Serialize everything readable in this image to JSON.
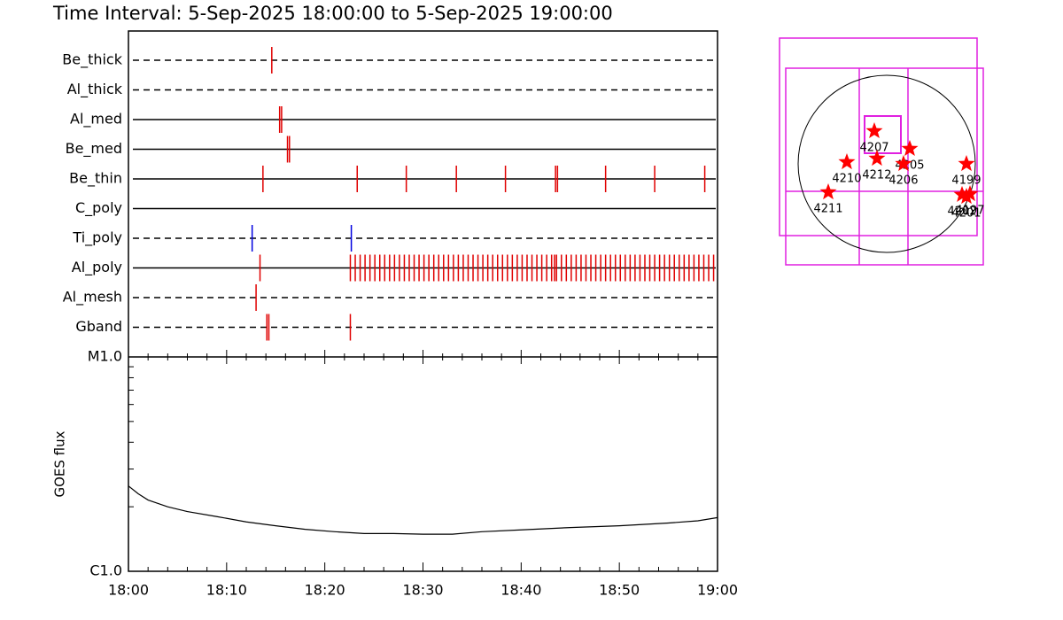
{
  "chart_data": [
    {
      "type": "timeline",
      "title": "Time Interval:  5-Sep-2025 18:00:00 to  5-Sep-2025 19:00:00",
      "xlim": [
        0,
        60
      ],
      "series": [
        {
          "name": "Be_thick",
          "line": "dashed",
          "color": "#e00000",
          "values": [
            14.6
          ]
        },
        {
          "name": "Al_thick",
          "line": "dashed",
          "color": "#e00000",
          "values": []
        },
        {
          "name": "Al_med",
          "line": "solid",
          "color": "#e00000",
          "values": [
            15.4,
            15.6
          ]
        },
        {
          "name": "Be_med",
          "line": "solid",
          "color": "#e00000",
          "values": [
            16.2,
            16.4
          ]
        },
        {
          "name": "Be_thin",
          "line": "solid",
          "color": "#e00000",
          "values": [
            13.7,
            23.3,
            28.3,
            33.4,
            38.4,
            43.5,
            43.7,
            48.6,
            53.6,
            58.7
          ]
        },
        {
          "name": "C_poly",
          "line": "solid",
          "color": "#e00000",
          "values": []
        },
        {
          "name": "Ti_poly",
          "line": "dashed",
          "color": "#0000e0",
          "values": [
            12.6,
            22.7
          ]
        },
        {
          "name": "Al_poly",
          "line": "solid",
          "color": "#e00000",
          "values": [
            13.4,
            22.6,
            23.1,
            23.6,
            24.1,
            24.6,
            25.1,
            25.6,
            26.1,
            26.6,
            27.1,
            27.6,
            28.1,
            28.6,
            29.1,
            29.6,
            30.1,
            30.6,
            31.1,
            31.6,
            32.1,
            32.6,
            33.1,
            33.6,
            34.1,
            34.6,
            35.1,
            35.6,
            36.1,
            36.6,
            37.1,
            37.6,
            38.1,
            38.6,
            39.1,
            39.6,
            40.1,
            40.6,
            41.1,
            41.6,
            42.1,
            42.6,
            43.1,
            43.4,
            43.6,
            44.1,
            44.6,
            45.1,
            45.6,
            46.1,
            46.6,
            47.1,
            47.6,
            48.1,
            48.6,
            49.1,
            49.6,
            50.1,
            50.6,
            51.1,
            51.6,
            52.1,
            52.6,
            53.1,
            53.6,
            54.1,
            54.6,
            55.1,
            55.6,
            56.1,
            56.6,
            57.1,
            57.6,
            58.1,
            58.6,
            59.1,
            59.6
          ]
        },
        {
          "name": "Al_mesh",
          "line": "dashed",
          "color": "#e00000",
          "values": [
            13.0
          ]
        },
        {
          "name": "Gband",
          "line": "dashed",
          "color": "#e00000",
          "values": [
            14.1,
            14.3,
            22.6
          ]
        }
      ]
    },
    {
      "type": "line",
      "ylabel": "GOES flux",
      "log_scale": true,
      "color": "#000000",
      "x": [
        0,
        1,
        2,
        4,
        6,
        9,
        12,
        15,
        18,
        21,
        24,
        27,
        30,
        33,
        36,
        40,
        45,
        50,
        55,
        58,
        60
      ],
      "values": [
        2.5e-06,
        2.3e-06,
        2.15e-06,
        2e-06,
        1.9e-06,
        1.8e-06,
        1.7e-06,
        1.63e-06,
        1.57e-06,
        1.53e-06,
        1.5e-06,
        1.5e-06,
        1.49e-06,
        1.49e-06,
        1.53e-06,
        1.56e-06,
        1.6e-06,
        1.63e-06,
        1.68e-06,
        1.72e-06,
        1.78e-06
      ],
      "xlim": [
        0,
        60
      ],
      "xticks": [
        {
          "value": 0,
          "label": "18:00"
        },
        {
          "value": 10,
          "label": "18:10"
        },
        {
          "value": 20,
          "label": "18:20"
        },
        {
          "value": 30,
          "label": "18:30"
        },
        {
          "value": 40,
          "label": "18:40"
        },
        {
          "value": 50,
          "label": "18:50"
        },
        {
          "value": 60,
          "label": "19:00"
        }
      ],
      "minor_xticks": [
        2,
        4,
        6,
        8,
        12,
        14,
        16,
        18,
        22,
        24,
        26,
        28,
        32,
        34,
        36,
        38,
        42,
        44,
        46,
        48,
        52,
        54,
        56,
        58
      ],
      "ylim": [
        1e-06,
        1e-05
      ],
      "yticks": [
        {
          "value": 1e-06,
          "label": "C1.0"
        },
        {
          "value": 1e-05,
          "label": "M1.0"
        }
      ],
      "minor_yticks": [
        2e-06,
        3e-06,
        4e-06,
        5e-06,
        6e-06,
        7e-06,
        8e-06,
        9e-06
      ]
    },
    {
      "type": "scatter",
      "color": "#ff0000",
      "xlim": [
        -1050,
        1050
      ],
      "ylim": [
        -1050,
        1050
      ],
      "labels": [
        "4207",
        "4205",
        "4210",
        "4212",
        "4206",
        "4199",
        "4211",
        "4202",
        "4197",
        "4201"
      ],
      "x": [
        -133,
        247,
        -428,
        -105,
        180,
        855,
        -627,
        808,
        893,
        855
      ],
      "y": [
        352,
        162,
        19,
        57,
        0,
        0,
        -304,
        -332,
        -323,
        -352
      ]
    }
  ]
}
